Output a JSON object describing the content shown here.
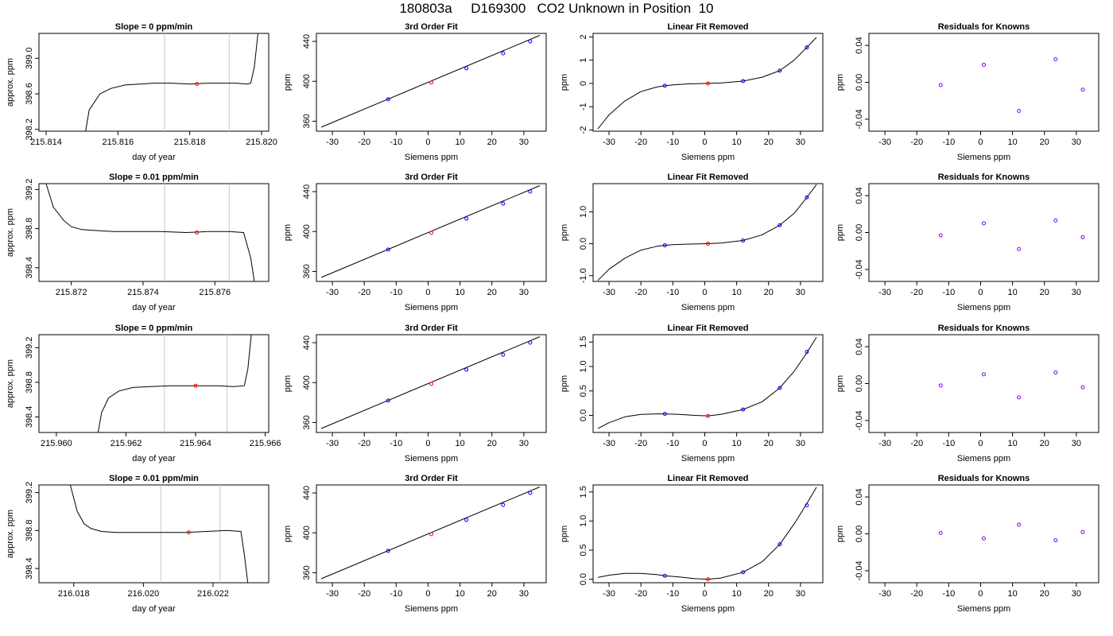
{
  "title": "180803a     D169300   CO2 Unknown in Position  10",
  "colors": {
    "axis": "#000000",
    "window_line": "#c8c8c8",
    "known_points": "#0000ff",
    "unknown_point": "#ff0000",
    "residual_points": "#8000ff"
  },
  "chart_data": [
    {
      "type": "line",
      "title": "Slope =  0  ppm/min",
      "xlabel": "day of year",
      "ylabel": "approx. ppm",
      "xlim": [
        215.8138,
        215.8202
      ],
      "ylim": [
        398.18,
        399.28
      ],
      "xticks": [
        "215.814",
        "215.816",
        "215.818",
        "215.820"
      ],
      "yticks": [
        "398.2",
        "398.6",
        "399.0"
      ],
      "xtick_values": [
        215.814,
        215.816,
        215.818,
        215.82
      ],
      "ytick_values": [
        398.2,
        398.6,
        399.0
      ],
      "vlines": [
        215.8173,
        215.8191
      ],
      "trace": {
        "x": [
          215.8151,
          215.8152,
          215.8155,
          215.8158,
          215.8162,
          215.8166,
          215.817,
          215.8175,
          215.818,
          215.8185,
          215.819,
          215.8193,
          215.8196,
          215.8197,
          215.8198,
          215.8199
        ],
        "y": [
          398.18,
          398.42,
          398.6,
          398.66,
          398.7,
          398.71,
          398.72,
          398.72,
          398.71,
          398.72,
          398.72,
          398.72,
          398.71,
          398.72,
          398.9,
          399.28
        ]
      },
      "marker": {
        "x": 215.8182,
        "y": 398.71
      }
    },
    {
      "type": "scatter",
      "title": "3rd Order Fit",
      "xlabel": "Siemens ppm",
      "ylabel": "ppm",
      "xlim": [
        -35,
        37
      ],
      "ylim": [
        350,
        448
      ],
      "xticks": [
        "-30",
        "-20",
        "-10",
        "0",
        "10",
        "20",
        "30"
      ],
      "yticks": [
        "360",
        "400",
        "440"
      ],
      "xtick_values": [
        -30,
        -20,
        -10,
        0,
        10,
        20,
        30
      ],
      "ytick_values": [
        360,
        400,
        440
      ],
      "curve": {
        "x": [
          -33.5,
          35
        ],
        "y": [
          354,
          446
        ]
      },
      "points": [
        {
          "x": -12.5,
          "y": 382
        },
        {
          "x": 12,
          "y": 413
        },
        {
          "x": 23.5,
          "y": 428
        },
        {
          "x": 32,
          "y": 440
        }
      ],
      "unknown": {
        "x": 1,
        "y": 398.7
      }
    },
    {
      "type": "scatter",
      "title": "Linear Fit Removed",
      "xlabel": "Siemens ppm",
      "ylabel": "ppm",
      "xlim": [
        -35,
        37
      ],
      "ylim": [
        -2.05,
        2.15
      ],
      "xticks": [
        "-30",
        "-20",
        "-10",
        "0",
        "10",
        "20",
        "30"
      ],
      "yticks": [
        "-2",
        "-1",
        "0",
        "1",
        "2"
      ],
      "xtick_values": [
        -30,
        -20,
        -10,
        0,
        10,
        20,
        30
      ],
      "ytick_values": [
        -2,
        -1,
        0,
        1,
        2
      ],
      "curve": {
        "x": [
          -33.5,
          -30,
          -25,
          -20,
          -15,
          -12.5,
          -10,
          -5,
          0,
          5,
          12,
          18,
          23.5,
          28,
          32,
          35
        ],
        "y": [
          -1.95,
          -1.35,
          -0.75,
          -0.35,
          -0.15,
          -0.1,
          -0.06,
          -0.02,
          0,
          0.02,
          0.1,
          0.27,
          0.55,
          1.0,
          1.55,
          1.98
        ]
      },
      "points": [
        {
          "x": -12.5,
          "y": -0.1
        },
        {
          "x": 12,
          "y": 0.1
        },
        {
          "x": 23.5,
          "y": 0.55
        },
        {
          "x": 32,
          "y": 1.55
        }
      ],
      "unknown": {
        "x": 1,
        "y": 0.0
      }
    },
    {
      "type": "scatter",
      "title": "Residuals for Knowns",
      "xlabel": "Siemens ppm",
      "ylabel": "ppm",
      "xlim": [
        -35,
        37
      ],
      "ylim": [
        -0.053,
        0.053
      ],
      "xticks": [
        "-30",
        "-20",
        "-10",
        "0",
        "10",
        "20",
        "30"
      ],
      "yticks": [
        "-0.04",
        "0.00",
        "0.04"
      ],
      "xtick_values": [
        -30,
        -20,
        -10,
        0,
        10,
        20,
        30
      ],
      "ytick_values": [
        -0.04,
        0,
        0.04
      ],
      "points": [
        {
          "x": -12.5,
          "y": -0.003
        },
        {
          "x": 1,
          "y": 0.019
        },
        {
          "x": 12,
          "y": -0.031
        },
        {
          "x": 23.5,
          "y": 0.025
        },
        {
          "x": 32,
          "y": -0.008
        }
      ]
    },
    {
      "type": "line",
      "title": "Slope =  0.01  ppm/min",
      "xlabel": "day of year",
      "ylabel": "approx. ppm",
      "xlim": [
        215.8711,
        215.8775
      ],
      "ylim": [
        398.26,
        399.26
      ],
      "xticks": [
        "215.872",
        "215.874",
        "215.876"
      ],
      "yticks": [
        "398.4",
        "398.8",
        "399.2"
      ],
      "xtick_values": [
        215.872,
        215.874,
        215.876
      ],
      "ytick_values": [
        398.4,
        398.8,
        399.2
      ],
      "vlines": [
        215.8746,
        215.8764
      ],
      "trace": {
        "x": [
          215.8713,
          215.8715,
          215.8718,
          215.872,
          215.8723,
          215.8727,
          215.8732,
          215.8738,
          215.8745,
          215.8752,
          215.8758,
          215.8764,
          215.8768,
          215.877,
          215.8771
        ],
        "y": [
          399.26,
          399.02,
          398.88,
          398.82,
          398.79,
          398.78,
          398.77,
          398.77,
          398.77,
          398.76,
          398.77,
          398.77,
          398.76,
          398.5,
          398.26
        ]
      },
      "marker": {
        "x": 215.8755,
        "y": 398.76
      }
    },
    {
      "type": "scatter",
      "title": "3rd Order Fit",
      "xlabel": "Siemens ppm",
      "ylabel": "ppm",
      "xlim": [
        -35,
        37
      ],
      "ylim": [
        350,
        448
      ],
      "xticks": [
        "-30",
        "-20",
        "-10",
        "0",
        "10",
        "20",
        "30"
      ],
      "yticks": [
        "360",
        "400",
        "440"
      ],
      "xtick_values": [
        -30,
        -20,
        -10,
        0,
        10,
        20,
        30
      ],
      "ytick_values": [
        360,
        400,
        440
      ],
      "curve": {
        "x": [
          -33.5,
          35
        ],
        "y": [
          354,
          446
        ]
      },
      "points": [
        {
          "x": -12.5,
          "y": 382
        },
        {
          "x": 12,
          "y": 413
        },
        {
          "x": 23.5,
          "y": 428
        },
        {
          "x": 32,
          "y": 440
        }
      ],
      "unknown": {
        "x": 1,
        "y": 398.7
      }
    },
    {
      "type": "scatter",
      "title": "Linear Fit Removed",
      "xlabel": "Siemens ppm",
      "ylabel": "ppm",
      "xlim": [
        -35,
        37
      ],
      "ylim": [
        -1.18,
        1.88
      ],
      "xticks": [
        "-30",
        "-20",
        "-10",
        "0",
        "10",
        "20",
        "30"
      ],
      "yticks": [
        "-1.0",
        "0.0",
        "1.0"
      ],
      "xtick_values": [
        -30,
        -20,
        -10,
        0,
        10,
        20,
        30
      ],
      "ytick_values": [
        -1,
        0,
        1
      ],
      "curve": {
        "x": [
          -33.5,
          -30,
          -25,
          -20,
          -15,
          -12.5,
          -10,
          -5,
          0,
          5,
          12,
          18,
          23.5,
          28,
          32,
          35
        ],
        "y": [
          -1.15,
          -0.8,
          -0.45,
          -0.2,
          -0.08,
          -0.05,
          -0.03,
          -0.01,
          0,
          0.02,
          0.1,
          0.28,
          0.58,
          0.95,
          1.45,
          1.85
        ]
      },
      "points": [
        {
          "x": -12.5,
          "y": -0.05
        },
        {
          "x": 12,
          "y": 0.1
        },
        {
          "x": 23.5,
          "y": 0.58
        },
        {
          "x": 32,
          "y": 1.45
        }
      ],
      "unknown": {
        "x": 1,
        "y": 0.0
      }
    },
    {
      "type": "scatter",
      "title": "Residuals for Knowns",
      "xlabel": "Siemens ppm",
      "ylabel": "ppm",
      "xlim": [
        -35,
        37
      ],
      "ylim": [
        -0.053,
        0.053
      ],
      "xticks": [
        "-30",
        "-20",
        "-10",
        "0",
        "10",
        "20",
        "30"
      ],
      "yticks": [
        "-0.04",
        "0.00",
        "0.04"
      ],
      "xtick_values": [
        -30,
        -20,
        -10,
        0,
        10,
        20,
        30
      ],
      "ytick_values": [
        -0.04,
        0,
        0.04
      ],
      "points": [
        {
          "x": -12.5,
          "y": -0.003
        },
        {
          "x": 1,
          "y": 0.01
        },
        {
          "x": 12,
          "y": -0.018
        },
        {
          "x": 23.5,
          "y": 0.013
        },
        {
          "x": 32,
          "y": -0.005
        }
      ]
    },
    {
      "type": "line",
      "title": "Slope =  0  ppm/min",
      "xlabel": "day of year",
      "ylabel": "approx. ppm",
      "xlim": [
        215.9595,
        215.9661
      ],
      "ylim": [
        398.22,
        399.35
      ],
      "xticks": [
        "215.960",
        "215.962",
        "215.964",
        "215.966"
      ],
      "yticks": [
        "398.4",
        "398.8",
        "399.2"
      ],
      "xtick_values": [
        215.96,
        215.962,
        215.964,
        215.966
      ],
      "ytick_values": [
        398.4,
        398.8,
        399.2
      ],
      "vlines": [
        215.9631,
        215.9649
      ],
      "trace": {
        "x": [
          215.9612,
          215.9613,
          215.9615,
          215.9618,
          215.9622,
          215.9627,
          215.9633,
          215.964,
          215.9646,
          215.9651,
          215.9654,
          215.9655,
          215.9656
        ],
        "y": [
          398.22,
          398.45,
          398.62,
          398.7,
          398.74,
          398.75,
          398.76,
          398.76,
          398.76,
          398.75,
          398.76,
          398.95,
          399.35
        ]
      },
      "marker": {
        "x": 215.964,
        "y": 398.76
      }
    },
    {
      "type": "scatter",
      "title": "3rd Order Fit",
      "xlabel": "Siemens ppm",
      "ylabel": "ppm",
      "xlim": [
        -35,
        37
      ],
      "ylim": [
        350,
        448
      ],
      "xticks": [
        "-30",
        "-20",
        "-10",
        "0",
        "10",
        "20",
        "30"
      ],
      "yticks": [
        "360",
        "400",
        "440"
      ],
      "xtick_values": [
        -30,
        -20,
        -10,
        0,
        10,
        20,
        30
      ],
      "ytick_values": [
        360,
        400,
        440
      ],
      "curve": {
        "x": [
          -33.5,
          35
        ],
        "y": [
          354,
          446
        ]
      },
      "points": [
        {
          "x": -12.5,
          "y": 382
        },
        {
          "x": 12,
          "y": 413
        },
        {
          "x": 23.5,
          "y": 428
        },
        {
          "x": 32,
          "y": 440
        }
      ],
      "unknown": {
        "x": 1,
        "y": 398.7
      }
    },
    {
      "type": "scatter",
      "title": "Linear Fit Removed",
      "xlabel": "Siemens ppm",
      "ylabel": "ppm",
      "xlim": [
        -35,
        37
      ],
      "ylim": [
        -0.35,
        1.65
      ],
      "xticks": [
        "-30",
        "-20",
        "-10",
        "0",
        "10",
        "20",
        "30"
      ],
      "yticks": [
        "0.0",
        "0.5",
        "1.0",
        "1.5"
      ],
      "xtick_values": [
        -30,
        -20,
        -10,
        0,
        10,
        20,
        30
      ],
      "ytick_values": [
        0,
        0.5,
        1,
        1.5
      ],
      "curve": {
        "x": [
          -33.5,
          -30,
          -25,
          -20,
          -15,
          -12.5,
          -8,
          -3,
          1,
          5,
          12,
          18,
          23.5,
          28,
          32,
          35
        ],
        "y": [
          -0.27,
          -0.15,
          -0.03,
          0.02,
          0.03,
          0.03,
          0.02,
          0.0,
          -0.01,
          0.02,
          0.12,
          0.28,
          0.56,
          0.9,
          1.28,
          1.6
        ]
      },
      "points": [
        {
          "x": -12.5,
          "y": 0.03
        },
        {
          "x": 12,
          "y": 0.12
        },
        {
          "x": 23.5,
          "y": 0.56
        },
        {
          "x": 32,
          "y": 1.3
        }
      ],
      "unknown": {
        "x": 1,
        "y": -0.01
      }
    },
    {
      "type": "scatter",
      "title": "Residuals for Knowns",
      "xlabel": "Siemens ppm",
      "ylabel": "ppm",
      "xlim": [
        -35,
        37
      ],
      "ylim": [
        -0.053,
        0.053
      ],
      "xticks": [
        "-30",
        "-20",
        "-10",
        "0",
        "10",
        "20",
        "30"
      ],
      "yticks": [
        "-0.04",
        "0.00",
        "0.04"
      ],
      "xtick_values": [
        -30,
        -20,
        -10,
        0,
        10,
        20,
        30
      ],
      "ytick_values": [
        -0.04,
        0,
        0.04
      ],
      "points": [
        {
          "x": -12.5,
          "y": -0.002
        },
        {
          "x": 1,
          "y": 0.01
        },
        {
          "x": 12,
          "y": -0.015
        },
        {
          "x": 23.5,
          "y": 0.012
        },
        {
          "x": 32,
          "y": -0.004
        }
      ]
    },
    {
      "type": "line",
      "title": "Slope =  0.01  ppm/min",
      "xlabel": "day of year",
      "ylabel": "approx. ppm",
      "xlim": [
        216.017,
        216.0236
      ],
      "ylim": [
        398.25,
        399.28
      ],
      "xticks": [
        "216.018",
        "216.020",
        "216.022"
      ],
      "yticks": [
        "398.4",
        "398.8",
        "399.2"
      ],
      "xtick_values": [
        216.018,
        216.02,
        216.022
      ],
      "ytick_values": [
        398.4,
        398.8,
        399.2
      ],
      "vlines": [
        216.0205,
        216.0222
      ],
      "trace": {
        "x": [
          216.0179,
          216.0181,
          216.0183,
          216.0185,
          216.0188,
          216.0192,
          216.0198,
          216.0205,
          216.0212,
          216.0218,
          216.0224,
          216.0228,
          216.0229,
          216.023
        ],
        "y": [
          399.28,
          399.0,
          398.87,
          398.82,
          398.79,
          398.78,
          398.78,
          398.78,
          398.78,
          398.79,
          398.8,
          398.79,
          398.55,
          398.25
        ]
      },
      "marker": {
        "x": 216.0213,
        "y": 398.78
      }
    },
    {
      "type": "scatter",
      "title": "3rd Order Fit",
      "xlabel": "Siemens ppm",
      "ylabel": "ppm",
      "xlim": [
        -35,
        37
      ],
      "ylim": [
        350,
        448
      ],
      "xticks": [
        "-30",
        "-20",
        "-10",
        "0",
        "10",
        "20",
        "30"
      ],
      "yticks": [
        "360",
        "400",
        "440"
      ],
      "xtick_values": [
        -30,
        -20,
        -10,
        0,
        10,
        20,
        30
      ],
      "ytick_values": [
        360,
        400,
        440
      ],
      "curve": {
        "x": [
          -33.5,
          35
        ],
        "y": [
          354,
          446
        ]
      },
      "points": [
        {
          "x": -12.5,
          "y": 382
        },
        {
          "x": 12,
          "y": 413
        },
        {
          "x": 23.5,
          "y": 428
        },
        {
          "x": 32,
          "y": 440
        }
      ],
      "unknown": {
        "x": 1,
        "y": 398.7
      }
    },
    {
      "type": "scatter",
      "title": "Linear Fit Removed",
      "xlabel": "Siemens ppm",
      "ylabel": "ppm",
      "xlim": [
        -35,
        37
      ],
      "ylim": [
        -0.06,
        1.62
      ],
      "xticks": [
        "-30",
        "-20",
        "-10",
        "0",
        "10",
        "20",
        "30"
      ],
      "yticks": [
        "0.0",
        "0.5",
        "1.0",
        "1.5"
      ],
      "xtick_values": [
        -30,
        -20,
        -10,
        0,
        10,
        20,
        30
      ],
      "ytick_values": [
        0,
        0.5,
        1,
        1.5
      ],
      "curve": {
        "x": [
          -33.5,
          -30,
          -25,
          -20,
          -15,
          -12.5,
          -8,
          -3,
          1,
          5,
          12,
          18,
          23.5,
          28,
          32,
          35
        ],
        "y": [
          0.03,
          0.07,
          0.1,
          0.1,
          0.08,
          0.06,
          0.04,
          0.01,
          0.0,
          0.02,
          0.12,
          0.3,
          0.6,
          0.95,
          1.3,
          1.58
        ]
      },
      "points": [
        {
          "x": -12.5,
          "y": 0.06
        },
        {
          "x": 12,
          "y": 0.12
        },
        {
          "x": 23.5,
          "y": 0.6
        },
        {
          "x": 32,
          "y": 1.27
        }
      ],
      "unknown": {
        "x": 1,
        "y": 0.0
      }
    },
    {
      "type": "scatter",
      "title": "Residuals for Knowns",
      "xlabel": "Siemens ppm",
      "ylabel": "ppm",
      "xlim": [
        -35,
        37
      ],
      "ylim": [
        -0.053,
        0.053
      ],
      "xticks": [
        "-30",
        "-20",
        "-10",
        "0",
        "10",
        "20",
        "30"
      ],
      "yticks": [
        "-0.04",
        "0.00",
        "0.04"
      ],
      "xtick_values": [
        -30,
        -20,
        -10,
        0,
        10,
        20,
        30
      ],
      "ytick_values": [
        -0.04,
        0,
        0.04
      ],
      "points": [
        {
          "x": -12.5,
          "y": 0.001
        },
        {
          "x": 1,
          "y": -0.005
        },
        {
          "x": 12,
          "y": 0.01
        },
        {
          "x": 23.5,
          "y": -0.007
        },
        {
          "x": 32,
          "y": 0.002
        }
      ]
    }
  ]
}
